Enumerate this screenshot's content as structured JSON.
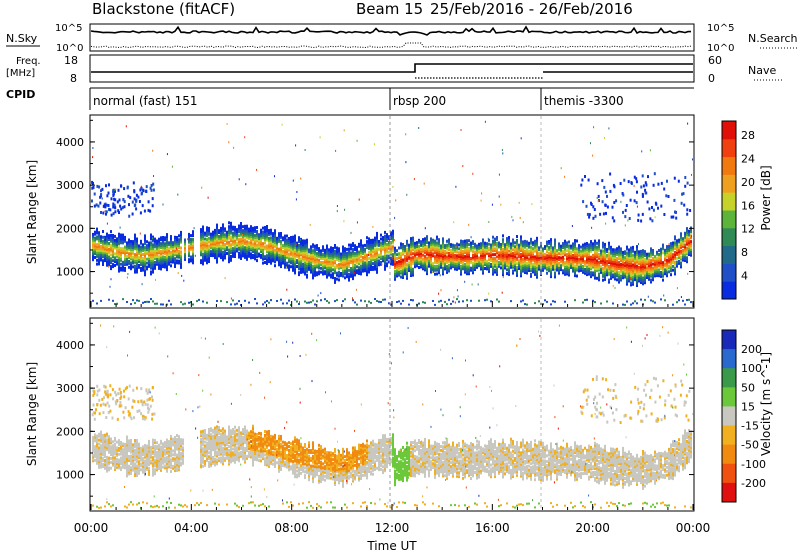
{
  "header": {
    "title": "Blackstone (fitACF)",
    "beam": "Beam 15",
    "date_range": "25/Feb/2016 - 26/Feb/2016"
  },
  "strips": {
    "nsky_label": "N.Sky",
    "nsky_ticks": [
      "10^5",
      "10^0"
    ],
    "nsearch_label": "N.Search",
    "nsearch_ticks": [
      "10^5",
      "10^0"
    ],
    "freq_label": "Freq.",
    "freq_unit": "[MHz]",
    "freq_ticks": [
      "18",
      "8"
    ],
    "nave_label": "Nave",
    "nave_ticks": [
      "60",
      "0"
    ],
    "cpid_label": "CPID",
    "cpid_segments": [
      {
        "label": "normal (fast) 151",
        "start_hour": 0
      },
      {
        "label": "rbsp 200",
        "start_hour": 12
      },
      {
        "label": "themis -3300",
        "start_hour": 18
      }
    ]
  },
  "chart_data": [
    {
      "type": "heatmap",
      "name": "power",
      "ylabel": "Slant Range [km]",
      "ylim": [
        180,
        4600
      ],
      "yticks": [
        1000,
        2000,
        3000,
        4000
      ],
      "xlim_hours": [
        0,
        24
      ],
      "colorbar_label": "Power [dB]",
      "colorbar_ticks": [
        "4",
        "8",
        "12",
        "16",
        "20",
        "24",
        "28"
      ],
      "colorbar_colors": [
        "#0a2ce0",
        "#1f50c8",
        "#226a8a",
        "#2f8a55",
        "#5cb43a",
        "#c6d22a",
        "#f0a020",
        "#f07a10",
        "#f04010",
        "#e01008"
      ],
      "echo_bands": [
        {
          "x_hours": [
            0.0,
            12.0
          ],
          "ranges_km": [
            [
              1650,
              1500,
              1400,
              1500,
              1600,
              1700,
              1750,
              1650,
              1450,
              1300,
              1200,
              1400,
              1600
            ]
          ]
        },
        {
          "x_hours": [
            12.0,
            24.0
          ],
          "ranges_km": [
            [
              1200,
              1450,
              1400,
              1380,
              1420,
              1400,
              1350,
              1360,
              1320,
              1200,
              1150,
              1300,
              1800
            ]
          ]
        }
      ]
    },
    {
      "type": "heatmap",
      "name": "velocity",
      "ylabel": "Slant Range [km]",
      "ylim": [
        180,
        4600
      ],
      "yticks": [
        1000,
        2000,
        3000,
        4000
      ],
      "xlim_hours": [
        0,
        24
      ],
      "colorbar_label": "Velocity [m s^-1]",
      "colorbar_ticks": [
        "200",
        "100",
        "50",
        "15",
        "-15",
        "-50",
        "-100",
        "-200"
      ],
      "colorbar_colors": [
        "#1a2ab8",
        "#2a6acf",
        "#3a9a4a",
        "#6ac83a",
        "#c8c8c0",
        "#f0b020",
        "#f08a10",
        "#f05010",
        "#e01010"
      ],
      "x_ticks": [
        "00:00",
        "04:00",
        "08:00",
        "12:00",
        "16:00",
        "20:00",
        "00:00"
      ],
      "xlabel": "Time UT"
    }
  ]
}
